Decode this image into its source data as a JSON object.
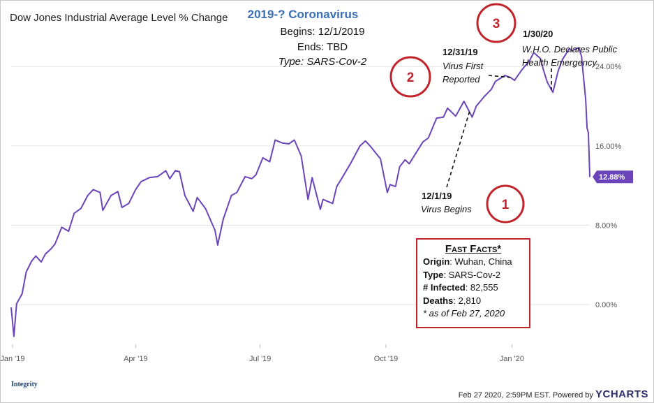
{
  "chart_data": {
    "type": "line",
    "title": "Dow Jones Industrial Average Level % Change",
    "y_tick_labels": [
      "0.00%",
      "8.00%",
      "16.00%",
      "24.00%"
    ],
    "y_ticks": [
      0,
      8,
      16,
      24
    ],
    "ylim": [
      -4,
      30
    ],
    "x_tick_labels": [
      "Jan '19",
      "Apr '19",
      "Jul '19",
      "Oct '19",
      "Jan '20"
    ],
    "x_ticks": [
      "2019-01-01",
      "2019-04-01",
      "2019-07-01",
      "2019-10-01",
      "2020-01-01"
    ],
    "xlim": [
      "2018-12-31",
      "2020-02-27"
    ],
    "grid": "horizontal",
    "series": [
      {
        "name": "Dow Jones Industrial Average Level % Change",
        "color": "#6a44b8",
        "last_value_label": "12.88%",
        "points": [
          [
            "2018-12-31",
            -0.3
          ],
          [
            "2019-01-02",
            -3.2
          ],
          [
            "2019-01-04",
            0.1
          ],
          [
            "2019-01-08",
            1.1
          ],
          [
            "2019-01-11",
            3.3
          ],
          [
            "2019-01-15",
            4.4
          ],
          [
            "2019-01-18",
            4.9
          ],
          [
            "2019-01-22",
            4.3
          ],
          [
            "2019-01-25",
            5.1
          ],
          [
            "2019-01-29",
            5.6
          ],
          [
            "2019-02-01",
            6.1
          ],
          [
            "2019-02-06",
            7.8
          ],
          [
            "2019-02-11",
            7.4
          ],
          [
            "2019-02-15",
            9.2
          ],
          [
            "2019-02-20",
            9.7
          ],
          [
            "2019-02-25",
            11.0
          ],
          [
            "2019-03-01",
            11.6
          ],
          [
            "2019-03-06",
            11.3
          ],
          [
            "2019-03-08",
            9.5
          ],
          [
            "2019-03-14",
            11.0
          ],
          [
            "2019-03-19",
            11.4
          ],
          [
            "2019-03-22",
            9.8
          ],
          [
            "2019-03-27",
            10.2
          ],
          [
            "2019-04-01",
            11.6
          ],
          [
            "2019-04-05",
            12.4
          ],
          [
            "2019-04-11",
            12.8
          ],
          [
            "2019-04-17",
            12.9
          ],
          [
            "2019-04-23",
            13.5
          ],
          [
            "2019-04-26",
            12.7
          ],
          [
            "2019-04-30",
            13.5
          ],
          [
            "2019-05-03",
            13.4
          ],
          [
            "2019-05-07",
            11.0
          ],
          [
            "2019-05-13",
            9.4
          ],
          [
            "2019-05-16",
            10.8
          ],
          [
            "2019-05-22",
            9.7
          ],
          [
            "2019-05-29",
            7.5
          ],
          [
            "2019-05-31",
            6.0
          ],
          [
            "2019-06-04",
            8.6
          ],
          [
            "2019-06-10",
            11.0
          ],
          [
            "2019-06-14",
            11.3
          ],
          [
            "2019-06-20",
            12.9
          ],
          [
            "2019-06-25",
            12.7
          ],
          [
            "2019-06-28",
            13.1
          ],
          [
            "2019-07-03",
            14.8
          ],
          [
            "2019-07-08",
            14.4
          ],
          [
            "2019-07-12",
            16.6
          ],
          [
            "2019-07-17",
            16.3
          ],
          [
            "2019-07-22",
            16.2
          ],
          [
            "2019-07-26",
            16.6
          ],
          [
            "2019-07-31",
            15.0
          ],
          [
            "2019-08-05",
            10.6
          ],
          [
            "2019-08-08",
            12.8
          ],
          [
            "2019-08-14",
            9.6
          ],
          [
            "2019-08-16",
            10.6
          ],
          [
            "2019-08-23",
            10.2
          ],
          [
            "2019-08-26",
            11.9
          ],
          [
            "2019-08-30",
            12.8
          ],
          [
            "2019-09-05",
            14.2
          ],
          [
            "2019-09-12",
            16.0
          ],
          [
            "2019-09-16",
            16.5
          ],
          [
            "2019-09-20",
            15.9
          ],
          [
            "2019-09-24",
            15.2
          ],
          [
            "2019-09-27",
            14.7
          ],
          [
            "2019-10-02",
            11.3
          ],
          [
            "2019-10-04",
            12.1
          ],
          [
            "2019-10-08",
            11.9
          ],
          [
            "2019-10-11",
            13.9
          ],
          [
            "2019-10-15",
            14.6
          ],
          [
            "2019-10-18",
            14.2
          ],
          [
            "2019-10-23",
            15.3
          ],
          [
            "2019-10-28",
            16.4
          ],
          [
            "2019-11-01",
            16.8
          ],
          [
            "2019-11-07",
            18.8
          ],
          [
            "2019-11-12",
            18.9
          ],
          [
            "2019-11-15",
            19.8
          ],
          [
            "2019-11-21",
            19.0
          ],
          [
            "2019-11-27",
            20.5
          ],
          [
            "2019-12-03",
            18.9
          ],
          [
            "2019-12-06",
            20.0
          ],
          [
            "2019-12-12",
            21.0
          ],
          [
            "2019-12-17",
            21.7
          ],
          [
            "2019-12-20",
            22.5
          ],
          [
            "2019-12-27",
            23.1
          ],
          [
            "2019-12-31",
            22.9
          ],
          [
            "2020-01-03",
            22.6
          ],
          [
            "2020-01-08",
            23.6
          ],
          [
            "2020-01-14",
            24.6
          ],
          [
            "2020-01-17",
            25.4
          ],
          [
            "2020-01-22",
            24.8
          ],
          [
            "2020-01-24",
            23.7
          ],
          [
            "2020-01-27",
            22.4
          ],
          [
            "2020-01-31",
            21.4
          ],
          [
            "2020-02-04",
            23.6
          ],
          [
            "2020-02-07",
            24.7
          ],
          [
            "2020-02-12",
            25.8
          ],
          [
            "2020-02-14",
            25.6
          ],
          [
            "2020-02-19",
            25.9
          ],
          [
            "2020-02-21",
            25.0
          ],
          [
            "2020-02-24",
            20.7
          ],
          [
            "2020-02-25",
            17.8
          ],
          [
            "2020-02-26",
            17.3
          ],
          [
            "2020-02-27",
            12.88
          ]
        ]
      }
    ]
  },
  "colors": {
    "line": "#6a44b8",
    "badge": "#6a44b8",
    "annotation_title": "#3a6fb5",
    "highlight": "#c0242a",
    "grid": "#e4e4e4"
  },
  "annotation": {
    "title": "2019-? Coronavirus",
    "begins": "Begins: 12/1/2019",
    "ends": "Ends: TBD",
    "type": "Type: SARS-Cov-2"
  },
  "callouts": [
    {
      "number": "1",
      "date": "12/1/19",
      "text": "Virus Begins",
      "at": "2019-12-01"
    },
    {
      "number": "2",
      "date": "12/31/19",
      "text_lines": [
        "Virus First",
        "Reported"
      ],
      "at": "2019-12-31"
    },
    {
      "number": "3",
      "date": "1/30/20",
      "text_lines": [
        "W.H.O. Declares Public",
        "Health Emergency"
      ],
      "at": "2020-01-30"
    }
  ],
  "fast_facts": {
    "header": "Fast Facts*",
    "rows": [
      {
        "label": "Origin",
        "value": ": Wuhan, China"
      },
      {
        "label": "Type",
        "value": ": SARS-Cov-2"
      },
      {
        "label": "# Infected",
        "value": ": 82,555"
      },
      {
        "label": "Deaths",
        "value": ": 2,810"
      }
    ],
    "footnote": "* as of Feb 27, 2020"
  },
  "footer": {
    "timestamp": "Feb 27 2020, 2:59PM EST. Powered by",
    "brand": "YCHARTS"
  },
  "logo": {
    "name": "Integrity"
  }
}
